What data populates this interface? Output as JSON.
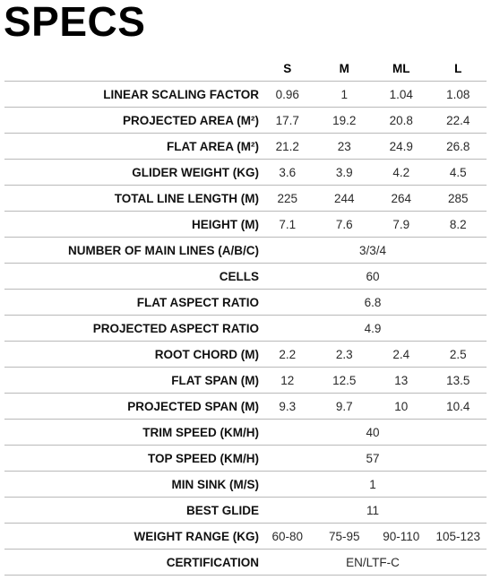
{
  "title": "SPECS",
  "sizes": [
    "S",
    "M",
    "ML",
    "L"
  ],
  "rows": [
    {
      "label": "LINEAR SCALING FACTOR",
      "values": [
        "0.96",
        "1",
        "1.04",
        "1.08"
      ]
    },
    {
      "label": "PROJECTED AREA (M²)",
      "values": [
        "17.7",
        "19.2",
        "20.8",
        "22.4"
      ]
    },
    {
      "label": "FLAT AREA (M²)",
      "values": [
        "21.2",
        "23",
        "24.9",
        "26.8"
      ]
    },
    {
      "label": "GLIDER WEIGHT (KG)",
      "values": [
        "3.6",
        "3.9",
        "4.2",
        "4.5"
      ]
    },
    {
      "label": "TOTAL LINE LENGTH (M)",
      "values": [
        "225",
        "244",
        "264",
        "285"
      ]
    },
    {
      "label": "HEIGHT (M)",
      "values": [
        "7.1",
        "7.6",
        "7.9",
        "8.2"
      ]
    },
    {
      "label": "NUMBER OF MAIN LINES (A/B/C)",
      "value": "3/3/4"
    },
    {
      "label": "CELLS",
      "value": "60"
    },
    {
      "label": "FLAT ASPECT RATIO",
      "value": "6.8"
    },
    {
      "label": "PROJECTED ASPECT RATIO",
      "value": "4.9"
    },
    {
      "label": "ROOT CHORD (M)",
      "values": [
        "2.2",
        "2.3",
        "2.4",
        "2.5"
      ]
    },
    {
      "label": "FLAT SPAN (M)",
      "values": [
        "12",
        "12.5",
        "13",
        "13.5"
      ]
    },
    {
      "label": "PROJECTED SPAN (M)",
      "values": [
        "9.3",
        "9.7",
        "10",
        "10.4"
      ]
    },
    {
      "label": "TRIM SPEED (KM/H)",
      "value": "40"
    },
    {
      "label": "TOP SPEED (KM/H)",
      "value": "57"
    },
    {
      "label": "MIN SINK (M/S)",
      "value": "1"
    },
    {
      "label": "BEST GLIDE",
      "value": "11"
    },
    {
      "label": "WEIGHT RANGE (KG)",
      "values": [
        "60-80",
        "75-95",
        "90-110",
        "105-123"
      ]
    },
    {
      "label": "CERTIFICATION",
      "value": "EN/LTF-C"
    }
  ]
}
